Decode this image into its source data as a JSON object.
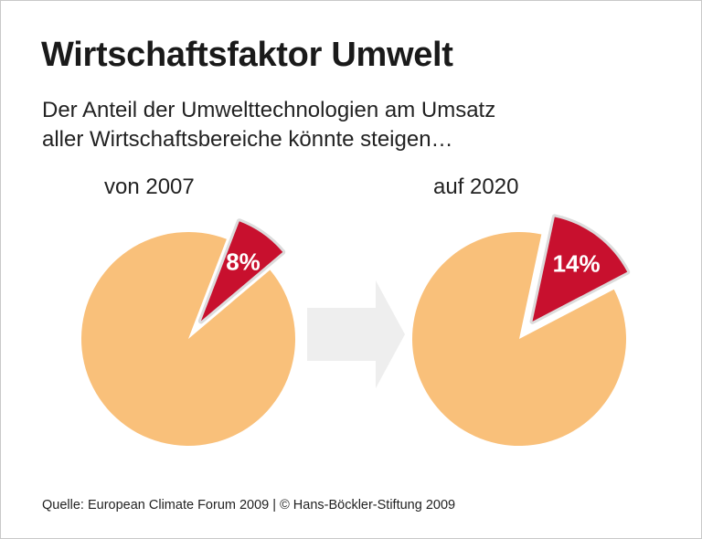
{
  "title": "Wirtschaftsfaktor Umwelt",
  "subtitle_lines": [
    "Der Anteil der Umwelttechnologien am Umsatz",
    "aller Wirtschaftsbereiche könnte steigen…"
  ],
  "source": "Quelle: European Climate Forum 2009 | © Hans-Böckler-Stiftung 2009",
  "colors": {
    "highlight": "#c8102e",
    "rest": "#f9c07a",
    "arrow": "#eeeeee"
  },
  "chart_data": [
    {
      "type": "pie",
      "title": "von 2007",
      "values": [
        8,
        92
      ],
      "labels": [
        "8%",
        ""
      ],
      "highlight_index": 0
    },
    {
      "type": "pie",
      "title": "auf 2020",
      "values": [
        14,
        86
      ],
      "labels": [
        "14%",
        ""
      ],
      "highlight_index": 0
    }
  ]
}
